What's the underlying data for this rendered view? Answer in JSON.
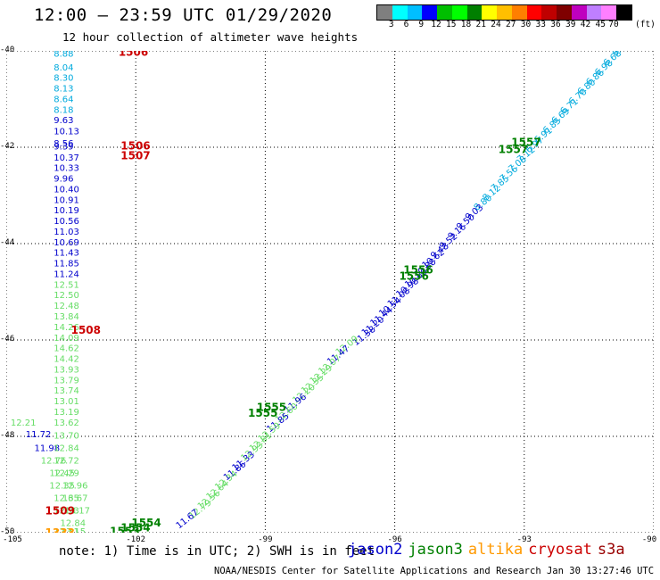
{
  "title": "12:00 – 23:59 UTC 01/29/2020",
  "subtitle": "12 hour collection of altimeter wave heights",
  "colorbar": {
    "colors": [
      "#7f7f7f",
      "#00ffff",
      "#00bfff",
      "#0000ff",
      "#00bf00",
      "#00ff00",
      "#007f00",
      "#ffff00",
      "#ffbf00",
      "#ff7f00",
      "#ff0000",
      "#bf0000",
      "#7f0000",
      "#bf00bf",
      "#bf7fff",
      "#ff7fff",
      "#000000"
    ],
    "labels": [
      "3",
      "6",
      "9",
      "12",
      "15",
      "18",
      "21",
      "24",
      "27",
      "30",
      "33",
      "36",
      "39",
      "42",
      "45",
      "70"
    ],
    "unit": "(ft)"
  },
  "axes": {
    "y_labels": [
      "-40",
      "-42",
      "-44",
      "-46",
      "-48",
      "-50"
    ],
    "x_labels": [
      "-105",
      "-102",
      "-99",
      "-96",
      "-93",
      "-90"
    ]
  },
  "colors": {
    "jason2": "#0000cc",
    "jason3": "#008000",
    "altika": "#ff9900",
    "cryosat": "#cc0000",
    "s3a": "#990000",
    "cyan": "#00aadd",
    "blue": "#0000cc",
    "lightgreen": "#66dd66",
    "darkgreen": "#008000",
    "red": "#cc0000",
    "orange": "#ff9900"
  },
  "chart_data": {
    "type": "scatter",
    "x_axis": "longitude",
    "y_axis": "latitude",
    "xlim": [
      -105,
      -90
    ],
    "ylim": [
      -50,
      -40
    ],
    "grid": true,
    "west_track": {
      "lon": -103.9,
      "points": [
        {
          "lat": -40.05,
          "v": "8.88",
          "c": "cyan"
        },
        {
          "lat": -40.33,
          "v": "8.04",
          "c": "cyan"
        },
        {
          "lat": -40.55,
          "v": "8.30",
          "c": "cyan"
        },
        {
          "lat": -40.77,
          "v": "8.13",
          "c": "cyan"
        },
        {
          "lat": -40.99,
          "v": "8.64",
          "c": "cyan"
        },
        {
          "lat": -41.21,
          "v": "8.18",
          "c": "cyan"
        },
        {
          "lat": -41.43,
          "v": "9.63",
          "c": "blue"
        },
        {
          "lat": -41.66,
          "v": "10.13",
          "c": "blue"
        },
        {
          "lat": -41.91,
          "v": "8.56",
          "c": "blue"
        },
        {
          "lat": -41.97,
          "v": "9.39",
          "c": "blue"
        },
        {
          "lat": -42.2,
          "v": "10.37",
          "c": "blue"
        },
        {
          "lat": -42.42,
          "v": "10.33",
          "c": "blue"
        },
        {
          "lat": -42.64,
          "v": "9.96",
          "c": "blue"
        },
        {
          "lat": -42.86,
          "v": "10.40",
          "c": "blue"
        },
        {
          "lat": -43.08,
          "v": "10.91",
          "c": "blue"
        },
        {
          "lat": -43.3,
          "v": "10.19",
          "c": "blue"
        },
        {
          "lat": -43.52,
          "v": "10.56",
          "c": "blue"
        },
        {
          "lat": -43.74,
          "v": "11.03",
          "c": "blue"
        },
        {
          "lat": -43.96,
          "v": "10.69",
          "c": "blue"
        },
        {
          "lat": -44.18,
          "v": "11.43",
          "c": "blue"
        },
        {
          "lat": -44.4,
          "v": "11.85",
          "c": "blue"
        },
        {
          "lat": -44.62,
          "v": "11.24",
          "c": "blue"
        },
        {
          "lat": -44.84,
          "v": "12.51",
          "c": "lightgreen"
        },
        {
          "lat": -45.06,
          "v": "12.50",
          "c": "lightgreen"
        },
        {
          "lat": -45.28,
          "v": "12.48",
          "c": "lightgreen"
        },
        {
          "lat": -45.5,
          "v": "13.84",
          "c": "lightgreen"
        },
        {
          "lat": -45.72,
          "v": "14.26",
          "c": "lightgreen"
        },
        {
          "lat": -45.94,
          "v": "14.09",
          "c": "lightgreen"
        },
        {
          "lat": -46.16,
          "v": "14.62",
          "c": "lightgreen"
        },
        {
          "lat": -46.38,
          "v": "14.42",
          "c": "lightgreen"
        },
        {
          "lat": -46.6,
          "v": "13.93",
          "c": "lightgreen"
        },
        {
          "lat": -46.82,
          "v": "13.79",
          "c": "lightgreen"
        },
        {
          "lat": -47.04,
          "v": "13.74",
          "c": "lightgreen"
        },
        {
          "lat": -47.26,
          "v": "13.01",
          "c": "lightgreen"
        },
        {
          "lat": -47.48,
          "v": "13.19",
          "c": "lightgreen"
        },
        {
          "lat": -47.7,
          "v": "13.62",
          "c": "lightgreen"
        }
      ]
    },
    "west_track_2": {
      "points": [
        {
          "lon": -104.9,
          "lat": -47.7,
          "v": "12.21",
          "c": "lightgreen"
        },
        {
          "lon": -104.55,
          "lat": -47.94,
          "v": "11.72",
          "c": "blue"
        },
        {
          "lon": -104.35,
          "lat": -48.23,
          "v": "11.98",
          "c": "blue"
        },
        {
          "lon": -104.2,
          "lat": -48.49,
          "v": "12.76",
          "c": "lightgreen"
        },
        {
          "lon": -103.9,
          "lat": -48.23,
          "v": "12.84",
          "c": "lightgreen"
        },
        {
          "lon": -103.9,
          "lat": -47.97,
          "v": "13.70",
          "c": "lightgreen"
        },
        {
          "lon": -103.9,
          "lat": -48.49,
          "v": "12.72",
          "c": "lightgreen"
        },
        {
          "lon": -104.0,
          "lat": -48.75,
          "v": "12.45",
          "c": "lightgreen"
        },
        {
          "lon": -103.9,
          "lat": -48.75,
          "v": "12.29",
          "c": "lightgreen"
        },
        {
          "lon": -104.0,
          "lat": -49.01,
          "v": "12.35",
          "c": "lightgreen"
        },
        {
          "lon": -103.7,
          "lat": -49.01,
          "v": "12.96",
          "c": "lightgreen"
        },
        {
          "lon": -103.9,
          "lat": -49.27,
          "v": "12.65",
          "c": "lightgreen"
        },
        {
          "lon": -103.7,
          "lat": -49.27,
          "v": "13.67",
          "c": "lightgreen"
        },
        {
          "lon": -103.9,
          "lat": -49.53,
          "v": "12.73",
          "c": "lightgreen"
        },
        {
          "lon": -103.65,
          "lat": -49.53,
          "v": "13.17",
          "c": "lightgreen"
        },
        {
          "lon": -103.75,
          "lat": -49.79,
          "v": "12.84",
          "c": "lightgreen"
        },
        {
          "lon": -103.9,
          "lat": -49.96,
          "v": "12.11",
          "c": "lightgreen"
        },
        {
          "lon": -103.75,
          "lat": -49.96,
          "v": "13.15",
          "c": "lightgreen"
        }
      ]
    },
    "diagonal_track": {
      "points": [
        {
          "lon": -90.9,
          "lat": -40.05,
          "v": "6.85",
          "c": "cyan"
        },
        {
          "lon": -91.1,
          "lat": -40.25,
          "v": "6.68",
          "c": "cyan"
        },
        {
          "lon": -91.3,
          "lat": -40.45,
          "v": "6.98",
          "c": "cyan"
        },
        {
          "lon": -91.5,
          "lat": -40.65,
          "v": "6.86",
          "c": "cyan"
        },
        {
          "lon": -91.7,
          "lat": -40.85,
          "v": "6.80",
          "c": "cyan"
        },
        {
          "lon": -91.9,
          "lat": -41.05,
          "v": "6.70",
          "c": "cyan"
        },
        {
          "lon": -92.1,
          "lat": -41.25,
          "v": "6.71",
          "c": "cyan"
        },
        {
          "lon": -92.3,
          "lat": -41.45,
          "v": "6.69",
          "c": "cyan"
        },
        {
          "lon": -92.5,
          "lat": -41.65,
          "v": "6.85",
          "c": "cyan"
        },
        {
          "lon": -92.7,
          "lat": -41.85,
          "v": "6.91",
          "c": "cyan"
        },
        {
          "lon": -92.9,
          "lat": -42.05,
          "v": "6.97",
          "c": "cyan"
        },
        {
          "lon": -93.1,
          "lat": -42.25,
          "v": "7.12",
          "c": "cyan"
        },
        {
          "lon": -93.3,
          "lat": -42.45,
          "v": "7.08",
          "c": "cyan"
        },
        {
          "lon": -93.5,
          "lat": -42.65,
          "v": "7.56",
          "c": "cyan"
        },
        {
          "lon": -93.7,
          "lat": -42.85,
          "v": "7.85",
          "c": "cyan"
        },
        {
          "lon": -93.9,
          "lat": -43.05,
          "v": "8.12",
          "c": "cyan"
        },
        {
          "lon": -94.1,
          "lat": -43.25,
          "v": "8.80",
          "c": "cyan"
        },
        {
          "lon": -94.3,
          "lat": -43.45,
          "v": "9.03",
          "c": "blue"
        },
        {
          "lon": -94.5,
          "lat": -43.65,
          "v": "9.50",
          "c": "blue"
        },
        {
          "lon": -94.7,
          "lat": -43.85,
          "v": "9.16",
          "c": "blue"
        },
        {
          "lon": -94.9,
          "lat": -44.05,
          "v": "9.52",
          "c": "blue"
        },
        {
          "lon": -95.1,
          "lat": -44.25,
          "v": "9.48",
          "c": "blue"
        },
        {
          "lon": -95.3,
          "lat": -44.45,
          "v": "10.62",
          "c": "blue"
        },
        {
          "lon": -95.5,
          "lat": -44.65,
          "v": "10.88",
          "c": "blue"
        },
        {
          "lon": -95.7,
          "lat": -44.85,
          "v": "10.86",
          "c": "blue"
        },
        {
          "lon": -95.9,
          "lat": -45.05,
          "v": "10.98",
          "c": "blue"
        },
        {
          "lon": -96.1,
          "lat": -45.25,
          "v": "11.08",
          "c": "blue"
        },
        {
          "lon": -96.3,
          "lat": -45.45,
          "v": "10.54",
          "c": "blue"
        },
        {
          "lon": -96.5,
          "lat": -45.65,
          "v": "11.44",
          "c": "blue"
        },
        {
          "lon": -96.7,
          "lat": -45.85,
          "v": "11.20",
          "c": "blue"
        },
        {
          "lon": -96.9,
          "lat": -46.05,
          "v": "11.38",
          "c": "blue"
        },
        {
          "lon": -97.3,
          "lat": -46.25,
          "v": "12.09",
          "c": "lightgreen"
        },
        {
          "lon": -97.5,
          "lat": -46.45,
          "v": "11.47",
          "c": "blue"
        },
        {
          "lon": -97.7,
          "lat": -46.65,
          "v": "12.07",
          "c": "lightgreen"
        },
        {
          "lon": -97.9,
          "lat": -46.85,
          "v": "12.29",
          "c": "lightgreen"
        },
        {
          "lon": -98.1,
          "lat": -47.05,
          "v": "12.35",
          "c": "lightgreen"
        },
        {
          "lon": -98.3,
          "lat": -47.25,
          "v": "12.20",
          "c": "lightgreen"
        },
        {
          "lon": -98.5,
          "lat": -47.45,
          "v": "11.96",
          "c": "blue"
        },
        {
          "lon": -98.7,
          "lat": -47.65,
          "v": "12.60",
          "c": "lightgreen"
        },
        {
          "lon": -98.9,
          "lat": -47.85,
          "v": "11.85",
          "c": "blue"
        },
        {
          "lon": -99.1,
          "lat": -48.05,
          "v": "12.59",
          "c": "lightgreen"
        },
        {
          "lon": -99.3,
          "lat": -48.25,
          "v": "12.81",
          "c": "lightgreen"
        },
        {
          "lon": -99.5,
          "lat": -48.45,
          "v": "12.93",
          "c": "lightgreen"
        },
        {
          "lon": -99.7,
          "lat": -48.65,
          "v": "11.33",
          "c": "blue"
        },
        {
          "lon": -99.9,
          "lat": -48.85,
          "v": "11.86",
          "c": "blue"
        },
        {
          "lon": -100.1,
          "lat": -49.05,
          "v": "12.34",
          "c": "lightgreen"
        },
        {
          "lon": -100.3,
          "lat": -49.25,
          "v": "12.64",
          "c": "lightgreen"
        },
        {
          "lon": -100.5,
          "lat": -49.45,
          "v": "12.56",
          "c": "lightgreen"
        },
        {
          "lon": -100.7,
          "lat": -49.65,
          "v": "12.79",
          "c": "lightgreen"
        },
        {
          "lon": -101.0,
          "lat": -49.85,
          "v": "11.67",
          "c": "blue"
        }
      ]
    },
    "orbit_labels": [
      {
        "lon": -102.4,
        "lat": -40.03,
        "v": "1506",
        "c": "red"
      },
      {
        "lon": -102.35,
        "lat": -41.97,
        "v": "1506",
        "c": "red"
      },
      {
        "lon": -102.35,
        "lat": -42.18,
        "v": "1507",
        "c": "red"
      },
      {
        "lon": -103.5,
        "lat": -45.8,
        "v": "1508",
        "c": "red"
      },
      {
        "lon": -104.1,
        "lat": -49.55,
        "v": "1509",
        "c": "red"
      },
      {
        "lon": -93.3,
        "lat": -41.9,
        "v": "1557",
        "c": "darkgreen"
      },
      {
        "lon": -93.6,
        "lat": -42.05,
        "v": "1557",
        "c": "darkgreen"
      },
      {
        "lon": -95.8,
        "lat": -44.55,
        "v": "1556",
        "c": "darkgreen"
      },
      {
        "lon": -95.9,
        "lat": -44.68,
        "v": "1556",
        "c": "darkgreen"
      },
      {
        "lon": -99.2,
        "lat": -47.4,
        "v": "1555",
        "c": "darkgreen"
      },
      {
        "lon": -99.4,
        "lat": -47.52,
        "v": "1555",
        "c": "darkgreen"
      },
      {
        "lon": -102.1,
        "lat": -49.8,
        "v": "1554",
        "c": "darkgreen"
      },
      {
        "lon": -102.35,
        "lat": -49.9,
        "v": "1554",
        "c": "darkgreen"
      },
      {
        "lon": -102.6,
        "lat": -49.97,
        "v": "1553",
        "c": "darkgreen"
      },
      {
        "lon": -104.1,
        "lat": -50.0,
        "v": "1333",
        "c": "orange"
      }
    ]
  },
  "note": "note: 1) Time is in UTC; 2) SWH is in feet",
  "legend": [
    {
      "label": "jason2",
      "color": "#0000cc"
    },
    {
      "label": "jason3",
      "color": "#008000"
    },
    {
      "label": "altika",
      "color": "#ff9900"
    },
    {
      "label": "cryosat",
      "color": "#cc0000"
    },
    {
      "label": "s3a",
      "color": "#990000"
    }
  ],
  "footer": "NOAA/NESDIS Center for Satellite Applications and Research   Jan 30 13:27:46 UTC 2020"
}
